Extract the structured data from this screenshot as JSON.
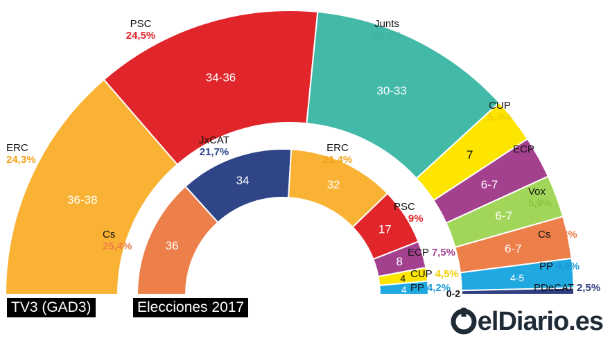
{
  "chart_data": [
    {
      "type": "semicircle",
      "title": "TV3 (GAD3)",
      "seats_total": 135,
      "parties": [
        {
          "name": "ERC",
          "share": "24,3%",
          "seats": "36-38",
          "seats_mid": 37,
          "color": "#f9b233",
          "pct_color": "#f4a21b"
        },
        {
          "name": "PSC",
          "share": "24,5%",
          "seats": "34-36",
          "seats_mid": 35,
          "color": "#e0252b",
          "pct_color": "#e0252b"
        },
        {
          "name": "Junts",
          "share": "20,5%",
          "seats": "30-33",
          "seats_mid": 31.5,
          "color": "#43b9a7",
          "pct_color": "#3fb1a0"
        },
        {
          "name": "CUP",
          "share": "5,4%",
          "seats": "7",
          "seats_mid": 7,
          "color": "#fde500",
          "pct_color": "#f2cf00"
        },
        {
          "name": "ECP",
          "share": "6%",
          "seats": "6-7",
          "seats_mid": 6.5,
          "color": "#a4418f",
          "pct_color": "#a4418f"
        },
        {
          "name": "Vox",
          "share": "5,9%",
          "seats": "6-7",
          "seats_mid": 6.5,
          "color": "#a2d65a",
          "pct_color": "#8cc63f"
        },
        {
          "name": "Cs",
          "share": "5,3%",
          "seats": "6-7",
          "seats_mid": 6.5,
          "color": "#ec7f4a",
          "pct_color": "#ec7f4a"
        },
        {
          "name": "PP",
          "share": "4,6%",
          "seats": "4-5",
          "seats_mid": 4.5,
          "color": "#20a8e1",
          "pct_color": "#1b9ad6"
        },
        {
          "name": "PDeCAT",
          "share": "2,5%",
          "seats": "0-2",
          "seats_mid": 1,
          "color": "#2f3f7f",
          "pct_color": "#2f3f7f"
        }
      ]
    },
    {
      "type": "semicircle",
      "title": "Elecciones 2017",
      "seats_total": 135,
      "parties": [
        {
          "name": "Cs",
          "share": "25,4%",
          "seats": "36",
          "seats_mid": 36,
          "color": "#ec7f4a",
          "pct_color": "#ec7f4a"
        },
        {
          "name": "JxCAT",
          "share": "21,7%",
          "seats": "34",
          "seats_mid": 34,
          "color": "#2f4587",
          "pct_color": "#2f4587"
        },
        {
          "name": "ERC",
          "share": "21,4%",
          "seats": "32",
          "seats_mid": 32,
          "color": "#f9b233",
          "pct_color": "#f4a21b"
        },
        {
          "name": "PSC",
          "share": "13,9%",
          "seats": "17",
          "seats_mid": 17,
          "color": "#e0252b",
          "pct_color": "#e0252b"
        },
        {
          "name": "ECP",
          "share": "7,5%",
          "seats": "8",
          "seats_mid": 8,
          "color": "#a4418f",
          "pct_color": "#a4418f"
        },
        {
          "name": "CUP",
          "share": "4,5%",
          "seats": "4",
          "seats_mid": 4,
          "color": "#fde500",
          "pct_color": "#f2cf00"
        },
        {
          "name": "PP",
          "share": "4,2%",
          "seats": "4",
          "seats_mid": 4,
          "color": "#20a8e1",
          "pct_color": "#1b9ad6"
        }
      ]
    }
  ],
  "brand": {
    "name": "elDiario.es",
    "color": "#1f2a37",
    "icon": "eldiario-logo-icon"
  }
}
